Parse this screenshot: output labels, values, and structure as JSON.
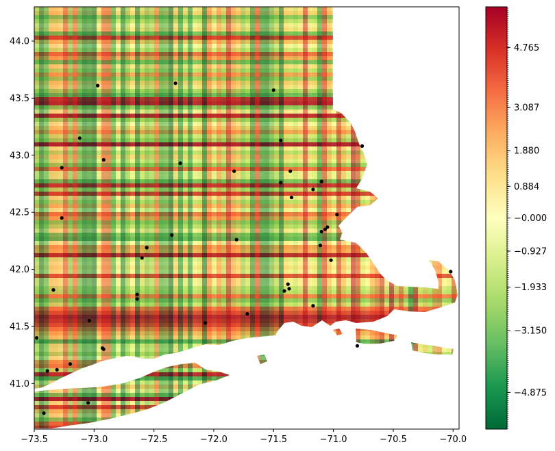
{
  "chart_data": {
    "type": "heatmap",
    "title": "",
    "xlabel": "",
    "ylabel": "",
    "xlim": [
      -73.5,
      -69.95
    ],
    "ylim": [
      40.6,
      44.3
    ],
    "x_ticks": [
      "-73.5",
      "-73.0",
      "-72.5",
      "-72.0",
      "-71.5",
      "-71.0",
      "-70.5",
      "-70.0"
    ],
    "y_ticks": [
      "41.0",
      "41.5",
      "42.0",
      "42.5",
      "43.0",
      "43.5",
      "44.0"
    ],
    "colorbar": {
      "colormap": "RdYlGn_r",
      "vmin": -5.9,
      "vmax": 5.9,
      "tick_labels": [
        "4.765",
        "3.087",
        "1.880",
        "0.884",
        "−0.000",
        "−0.927",
        "−1.933",
        "−3.150",
        "−4.875"
      ],
      "tick_values": [
        4.765,
        3.087,
        1.88,
        0.884,
        0.0,
        -0.927,
        -1.933,
        -3.15,
        -4.875
      ],
      "colors": [
        "#006837",
        "#1a9850",
        "#66bd63",
        "#a6d96a",
        "#d9ef8b",
        "#ffffbf",
        "#fee08b",
        "#fdae61",
        "#f46d43",
        "#d73027",
        "#a50026"
      ]
    },
    "points": [
      {
        "lon": -72.97,
        "lat": 43.61
      },
      {
        "lon": -72.32,
        "lat": 43.63
      },
      {
        "lon": -71.5,
        "lat": 43.57
      },
      {
        "lon": -73.12,
        "lat": 43.15
      },
      {
        "lon": -71.44,
        "lat": 43.13
      },
      {
        "lon": -70.76,
        "lat": 43.08
      },
      {
        "lon": -72.92,
        "lat": 42.96
      },
      {
        "lon": -72.28,
        "lat": 42.93
      },
      {
        "lon": -73.27,
        "lat": 42.89
      },
      {
        "lon": -71.83,
        "lat": 42.86
      },
      {
        "lon": -71.36,
        "lat": 42.86
      },
      {
        "lon": -71.1,
        "lat": 42.77
      },
      {
        "lon": -71.44,
        "lat": 42.76
      },
      {
        "lon": -71.17,
        "lat": 42.7
      },
      {
        "lon": -71.35,
        "lat": 42.63
      },
      {
        "lon": -73.27,
        "lat": 42.45
      },
      {
        "lon": -70.97,
        "lat": 42.48
      },
      {
        "lon": -71.05,
        "lat": 42.37
      },
      {
        "lon": -71.07,
        "lat": 42.35
      },
      {
        "lon": -71.1,
        "lat": 42.33
      },
      {
        "lon": -72.35,
        "lat": 42.3
      },
      {
        "lon": -71.81,
        "lat": 42.26
      },
      {
        "lon": -71.11,
        "lat": 42.21
      },
      {
        "lon": -72.56,
        "lat": 42.19
      },
      {
        "lon": -72.6,
        "lat": 42.1
      },
      {
        "lon": -71.02,
        "lat": 42.08
      },
      {
        "lon": -70.02,
        "lat": 41.98
      },
      {
        "lon": -73.34,
        "lat": 41.82
      },
      {
        "lon": -71.38,
        "lat": 41.87
      },
      {
        "lon": -71.37,
        "lat": 41.83
      },
      {
        "lon": -71.41,
        "lat": 41.81
      },
      {
        "lon": -72.64,
        "lat": 41.78
      },
      {
        "lon": -72.64,
        "lat": 41.74
      },
      {
        "lon": -71.17,
        "lat": 41.68
      },
      {
        "lon": -71.72,
        "lat": 41.61
      },
      {
        "lon": -73.04,
        "lat": 41.55
      },
      {
        "lon": -72.07,
        "lat": 41.53
      },
      {
        "lon": -73.48,
        "lat": 41.4
      },
      {
        "lon": -70.8,
        "lat": 41.33
      },
      {
        "lon": -72.93,
        "lat": 41.31
      },
      {
        "lon": -72.92,
        "lat": 41.3
      },
      {
        "lon": -73.2,
        "lat": 41.17
      },
      {
        "lon": -73.31,
        "lat": 41.12
      },
      {
        "lon": -73.39,
        "lat": 41.11
      },
      {
        "lon": -73.05,
        "lat": 40.83
      },
      {
        "lon": -73.42,
        "lat": 40.74
      }
    ]
  }
}
